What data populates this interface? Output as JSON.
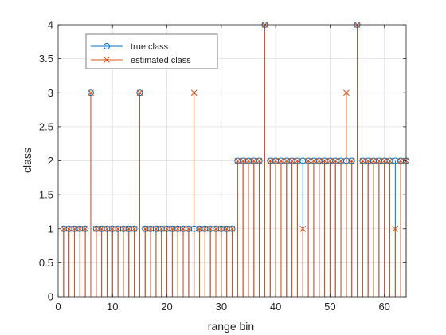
{
  "chart_data": {
    "type": "stem",
    "xlabel": "range bin",
    "ylabel": "class",
    "xlim": [
      0,
      64
    ],
    "ylim": [
      0,
      4
    ],
    "xticks": [
      "0",
      "10",
      "20",
      "30",
      "40",
      "50",
      "60"
    ],
    "yticks": [
      "0",
      "0.5",
      "1",
      "1.5",
      "2",
      "2.5",
      "3",
      "3.5",
      "4"
    ],
    "grid": true,
    "legend_position": "top-left",
    "x": [
      1,
      2,
      3,
      4,
      5,
      6,
      7,
      8,
      9,
      10,
      11,
      12,
      13,
      14,
      15,
      16,
      17,
      18,
      19,
      20,
      21,
      22,
      23,
      24,
      25,
      26,
      27,
      28,
      29,
      30,
      31,
      32,
      33,
      34,
      35,
      36,
      37,
      38,
      39,
      40,
      41,
      42,
      43,
      44,
      45,
      46,
      47,
      48,
      49,
      50,
      51,
      52,
      53,
      54,
      55,
      56,
      57,
      58,
      59,
      60,
      61,
      62,
      63,
      64
    ],
    "series": [
      {
        "name": "true class",
        "marker": "circle",
        "color": "#0072BD",
        "values": [
          1,
          1,
          1,
          1,
          1,
          3,
          1,
          1,
          1,
          1,
          1,
          1,
          1,
          1,
          3,
          1,
          1,
          1,
          1,
          1,
          1,
          1,
          1,
          1,
          1,
          1,
          1,
          1,
          1,
          1,
          1,
          1,
          2,
          2,
          2,
          2,
          2,
          4,
          2,
          2,
          2,
          2,
          2,
          2,
          2,
          2,
          2,
          2,
          2,
          2,
          2,
          2,
          2,
          2,
          4,
          2,
          2,
          2,
          2,
          2,
          2,
          2,
          2,
          2
        ]
      },
      {
        "name": "estimated class",
        "marker": "x",
        "color": "#D95319",
        "values": [
          1,
          1,
          1,
          1,
          1,
          3,
          1,
          1,
          1,
          1,
          1,
          1,
          1,
          1,
          3,
          1,
          1,
          1,
          1,
          1,
          1,
          1,
          1,
          1,
          3,
          1,
          1,
          1,
          1,
          1,
          1,
          1,
          2,
          2,
          2,
          2,
          2,
          4,
          2,
          2,
          2,
          2,
          2,
          2,
          1,
          2,
          2,
          2,
          2,
          2,
          2,
          2,
          3,
          2,
          4,
          2,
          2,
          2,
          2,
          2,
          2,
          1,
          2,
          2
        ]
      }
    ]
  }
}
